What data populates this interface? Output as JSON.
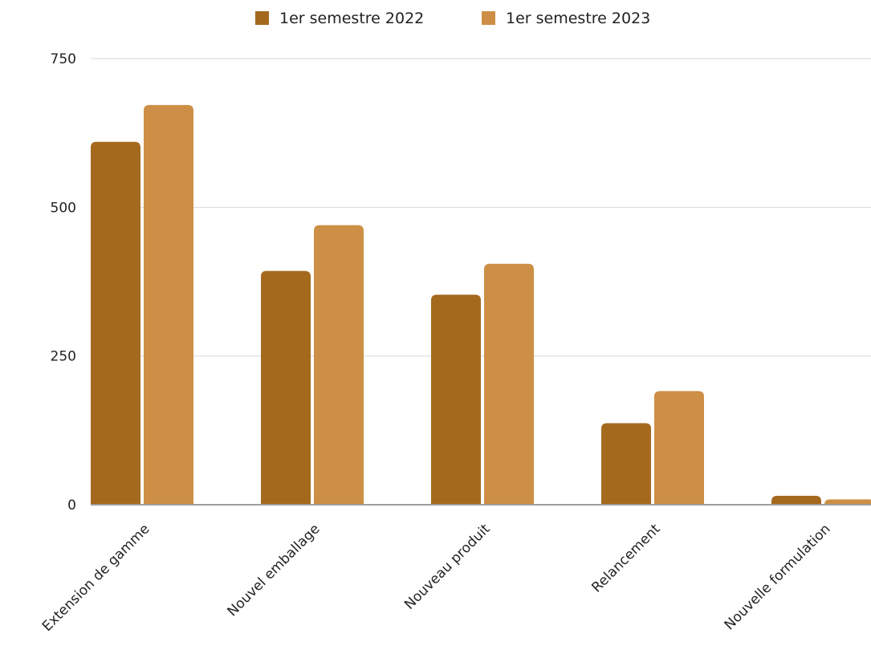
{
  "chart_data": {
    "type": "bar",
    "title": "",
    "xlabel": "",
    "ylabel": "",
    "categories": [
      "Extension de gamme",
      "Nouvel emballage",
      "Nouveau produit",
      "Relancement",
      "Nouvelle formulation"
    ],
    "series": [
      {
        "name": "1er semestre 2022",
        "color": "#a5691e",
        "values": [
          610,
          393,
          353,
          137,
          15
        ]
      },
      {
        "name": "1er semestre 2023",
        "color": "#cd8f45",
        "values": [
          672,
          470,
          405,
          191,
          9
        ]
      }
    ],
    "ylim": [
      0,
      750
    ],
    "yticks": [
      0,
      250,
      500,
      750
    ],
    "ytick_labels": [
      "0",
      "250",
      "500",
      "750"
    ],
    "grid": true,
    "legend_position": "top-center"
  }
}
